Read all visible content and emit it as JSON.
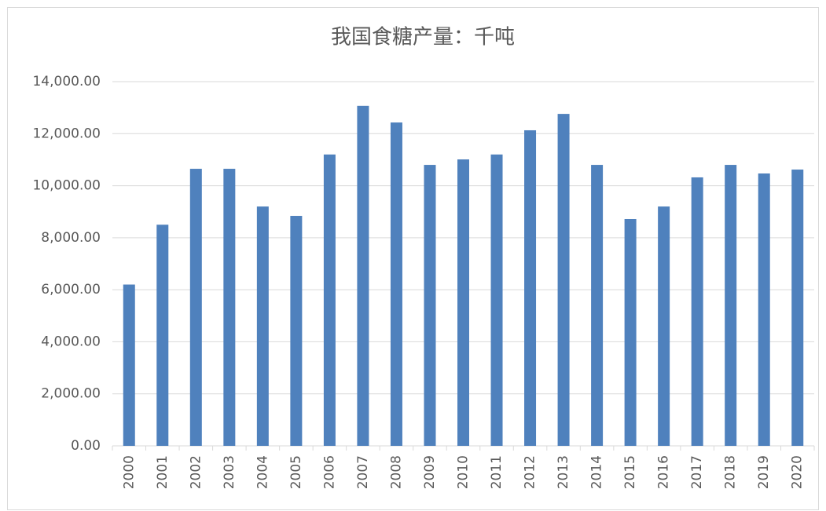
{
  "chart_data": {
    "type": "bar",
    "title": "我国食糖产量：千吨",
    "categories": [
      "2000",
      "2001",
      "2002",
      "2003",
      "2004",
      "2005",
      "2006",
      "2007",
      "2008",
      "2009",
      "2010",
      "2011",
      "2012",
      "2013",
      "2014",
      "2015",
      "2016",
      "2017",
      "2018",
      "2019",
      "2020"
    ],
    "values": [
      6200,
      8500,
      10650,
      10650,
      9200,
      8840,
      11200,
      13070,
      12430,
      10800,
      11010,
      11200,
      12130,
      12760,
      10800,
      8720,
      9200,
      10320,
      10800,
      10470,
      10620
    ],
    "color": "#4f81bd",
    "ylim": [
      0,
      14000
    ],
    "yticks": [
      {
        "value": 0,
        "label": "0.00"
      },
      {
        "value": 2000,
        "label": "2,000.00"
      },
      {
        "value": 4000,
        "label": "4,000.00"
      },
      {
        "value": 6000,
        "label": "6,000.00"
      },
      {
        "value": 8000,
        "label": "8,000.00"
      },
      {
        "value": 10000,
        "label": "10,000.00"
      },
      {
        "value": 12000,
        "label": "12,000.00"
      },
      {
        "value": 14000,
        "label": "14,000.00"
      }
    ],
    "grid": true
  }
}
